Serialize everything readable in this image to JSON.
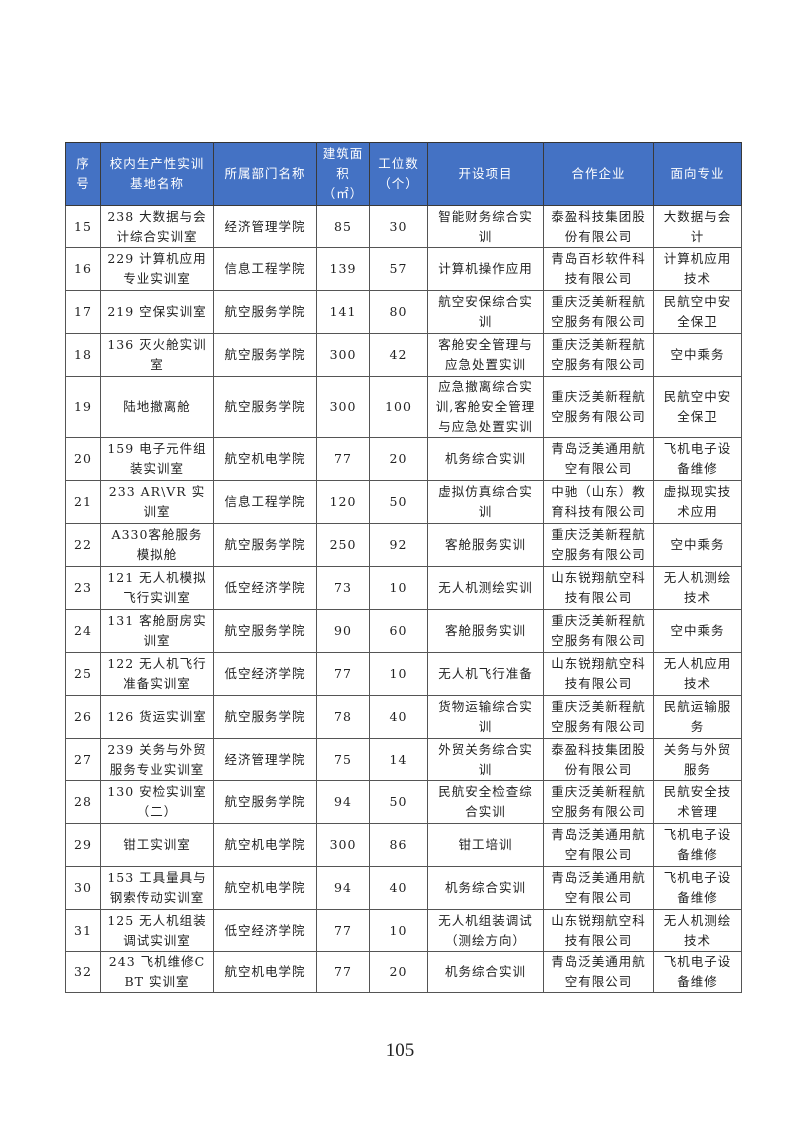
{
  "header_color": "#4472C4",
  "columns": [
    "序号",
    "校内生产性实训基地名称",
    "所属部门名称",
    "建筑面积（㎡）",
    "工位数（个）",
    "开设项目",
    "合作企业",
    "面向专业"
  ],
  "rows": [
    [
      "15",
      "238 大数据与会计综合实训室",
      "经济管理学院",
      "85",
      "30",
      "智能财务综合实训",
      "泰盈科技集团股份有限公司",
      "大数据与会计"
    ],
    [
      "16",
      "229 计算机应用专业实训室",
      "信息工程学院",
      "139",
      "57",
      "计算机操作应用",
      "青岛百杉软件科技有限公司",
      "计算机应用技术"
    ],
    [
      "17",
      "219 空保实训室",
      "航空服务学院",
      "141",
      "80",
      "航空安保综合实训",
      "重庆泛美新程航空服务有限公司",
      "民航空中安全保卫"
    ],
    [
      "18",
      "136 灭火舱实训室",
      "航空服务学院",
      "300",
      "42",
      "客舱安全管理与应急处置实训",
      "重庆泛美新程航空服务有限公司",
      "空中乘务"
    ],
    [
      "19",
      "陆地撤离舱",
      "航空服务学院",
      "300",
      "100",
      "应急撤离综合实训,客舱安全管理与应急处置实训",
      "重庆泛美新程航空服务有限公司",
      "民航空中安全保卫"
    ],
    [
      "20",
      "159 电子元件组装实训室",
      "航空机电学院",
      "77",
      "20",
      "机务综合实训",
      "青岛泛美通用航空有限公司",
      "飞机电子设备维修"
    ],
    [
      "21",
      "233 AR\\VR 实训室",
      "信息工程学院",
      "120",
      "50",
      "虚拟仿真综合实训",
      "中驰（山东）教育科技有限公司",
      "虚拟现实技术应用"
    ],
    [
      "22",
      "A330客舱服务模拟舱",
      "航空服务学院",
      "250",
      "92",
      "客舱服务实训",
      "重庆泛美新程航空服务有限公司",
      "空中乘务"
    ],
    [
      "23",
      "121 无人机模拟飞行实训室",
      "低空经济学院",
      "73",
      "10",
      "无人机测绘实训",
      "山东锐翔航空科技有限公司",
      "无人机测绘技术"
    ],
    [
      "24",
      "131 客舱厨房实训室",
      "航空服务学院",
      "90",
      "60",
      "客舱服务实训",
      "重庆泛美新程航空服务有限公司",
      "空中乘务"
    ],
    [
      "25",
      "122 无人机飞行准备实训室",
      "低空经济学院",
      "77",
      "10",
      "无人机飞行准备",
      "山东锐翔航空科技有限公司",
      "无人机应用技术"
    ],
    [
      "26",
      "126 货运实训室",
      "航空服务学院",
      "78",
      "40",
      "货物运输综合实训",
      "重庆泛美新程航空服务有限公司",
      "民航运输服务"
    ],
    [
      "27",
      "239 关务与外贸服务专业实训室",
      "经济管理学院",
      "75",
      "14",
      "外贸关务综合实训",
      "泰盈科技集团股份有限公司",
      "关务与外贸服务"
    ],
    [
      "28",
      "130 安检实训室（二）",
      "航空服务学院",
      "94",
      "50",
      "民航安全检查综合实训",
      "重庆泛美新程航空服务有限公司",
      "民航安全技术管理"
    ],
    [
      "29",
      "钳工实训室",
      "航空机电学院",
      "300",
      "86",
      "钳工培训",
      "青岛泛美通用航空有限公司",
      "飞机电子设备维修"
    ],
    [
      "30",
      "153 工具量具与钢索传动实训室",
      "航空机电学院",
      "94",
      "40",
      "机务综合实训",
      "青岛泛美通用航空有限公司",
      "飞机电子设备维修"
    ],
    [
      "31",
      "125 无人机组装调试实训室",
      "低空经济学院",
      "77",
      "10",
      "无人机组装调试（测绘方向）",
      "山东锐翔航空科技有限公司",
      "无人机测绘技术"
    ],
    [
      "32",
      "243 飞机维修CBT 实训室",
      "航空机电学院",
      "77",
      "20",
      "机务综合实训",
      "青岛泛美通用航空有限公司",
      "飞机电子设备维修"
    ]
  ],
  "page_number": "105"
}
